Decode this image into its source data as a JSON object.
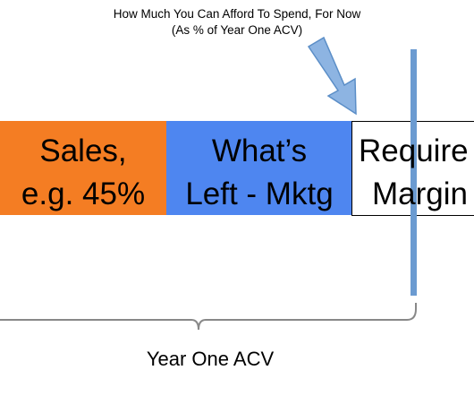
{
  "annotation": {
    "line1": "How Much You Can Afford To Spend, For Now",
    "line2": "(As % of Year One ACV)"
  },
  "segments": [
    {
      "lines": [
        "Sales,",
        "e.g. 45%"
      ]
    },
    {
      "lines": [
        "What’s",
        "Left - Mktg"
      ]
    },
    {
      "lines": [
        "Require",
        "Margin"
      ]
    }
  ],
  "bracket_label": "Year One ACV"
}
